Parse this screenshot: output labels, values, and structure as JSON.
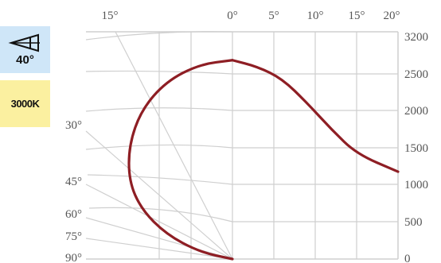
{
  "badges": {
    "beam_angle": "40°",
    "color_temperature": "3000K"
  },
  "icon": "light-beam-icon",
  "colors": {
    "curve": "#8e1e24",
    "beam_badge": "#cfe6f8",
    "cct_badge": "#fbf0a0",
    "grid": "#cfcfcf"
  },
  "chart_data": {
    "type": "line",
    "title": "",
    "xlabel": "",
    "ylabel": "",
    "x_axis_ticks": [
      "15°",
      "0°",
      "5°",
      "10°",
      "15°",
      "20°"
    ],
    "y_axis_ticks": [
      "3200",
      "2500",
      "2000",
      "1500",
      "1000",
      "500",
      "0"
    ],
    "y_axis_values": [
      3200,
      2500,
      2000,
      1500,
      1000,
      500,
      0
    ],
    "angle_labels": [
      "30°",
      "45°",
      "60°",
      "75°",
      "90°"
    ],
    "ylim": [
      0,
      3200
    ],
    "grid": true,
    "series": [
      {
        "x": [
          0,
          3,
          6,
          9,
          12,
          15,
          20
        ],
        "y": [
          2800,
          2710,
          2540,
          2200,
          1820,
          1480,
          1230
        ]
      },
      {
        "x": [
          0,
          -4,
          -8,
          -11,
          -12.5,
          -12.5,
          -11,
          -8,
          -4,
          0
        ],
        "y": [
          2800,
          2740,
          2500,
          2100,
          1600,
          1100,
          700,
          350,
          100,
          0
        ]
      }
    ]
  }
}
